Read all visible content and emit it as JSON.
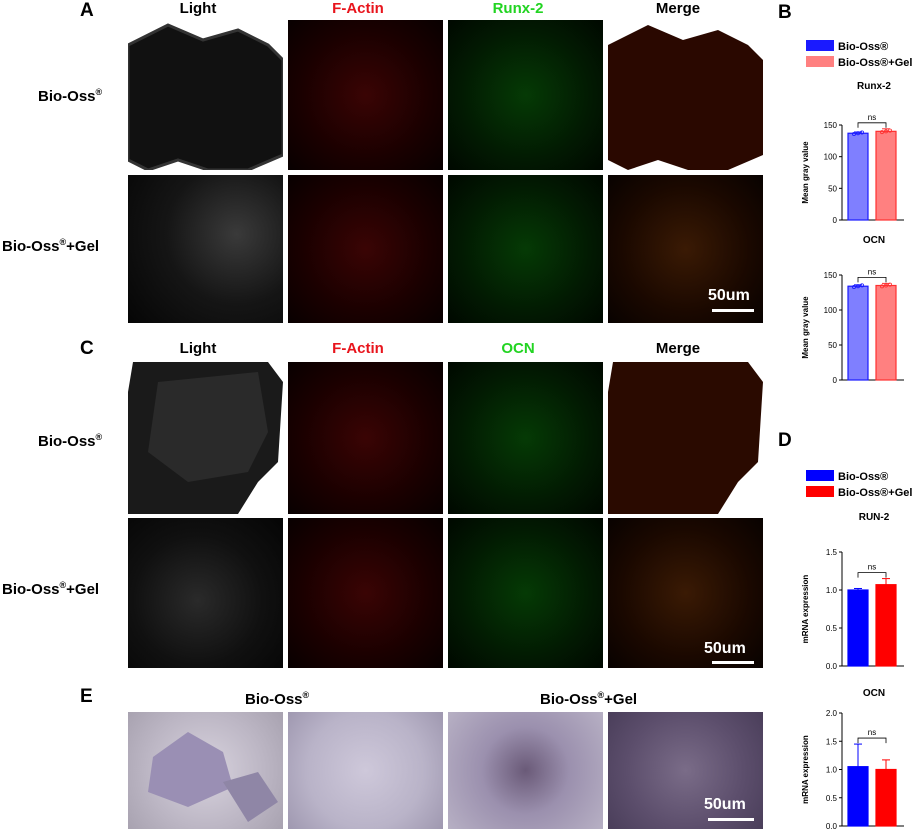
{
  "panels": {
    "A": "A",
    "B": "B",
    "C": "C",
    "D": "D",
    "E": "E"
  },
  "panel_a": {
    "col_headers": [
      {
        "text": "Light",
        "color": "#000000"
      },
      {
        "text": "F-Actin",
        "color": "#e8141c"
      },
      {
        "text": "Runx-2",
        "color": "#22d422"
      },
      {
        "text": "Merge",
        "color": "#000000"
      }
    ],
    "row_labels": [
      {
        "main": "Bio-Oss",
        "sup": "®",
        "suffix": ""
      },
      {
        "main": "Bio-Oss",
        "sup": "®",
        "suffix": "+Gel"
      }
    ],
    "scale_bar": "50um"
  },
  "panel_c": {
    "col_headers": [
      {
        "text": "Light",
        "color": "#000000"
      },
      {
        "text": "F-Actin",
        "color": "#e8141c"
      },
      {
        "text": "OCN",
        "color": "#22d422"
      },
      {
        "text": "Merge",
        "color": "#000000"
      }
    ],
    "row_labels": [
      {
        "main": "Bio-Oss",
        "sup": "®",
        "suffix": ""
      },
      {
        "main": "Bio-Oss",
        "sup": "®",
        "suffix": "+Gel"
      }
    ],
    "scale_bar": "50um"
  },
  "panel_e": {
    "headers": [
      {
        "main": "Bio-Oss",
        "sup": "®",
        "suffix": ""
      },
      {
        "main": "Bio-Oss",
        "sup": "®",
        "suffix": "+Gel"
      }
    ],
    "scale_bar": "50um"
  },
  "colors": {
    "blue_light": "#7f7fff",
    "red_light": "#ff8080",
    "blue": "#0000ff",
    "red": "#ff0000"
  },
  "chart_data": [
    {
      "type": "bar",
      "panel": "B",
      "title": "Runx-2",
      "ylabel": "Mean gray value",
      "legend": [
        "Bio-Oss®",
        "Bio-Oss®+Gel"
      ],
      "categories": [
        "Bio-Oss®",
        "Bio-Oss®+Gel"
      ],
      "values": [
        137,
        140
      ],
      "errors": [
        2,
        4
      ],
      "ylim": [
        0,
        150
      ],
      "yticks": [
        "0",
        "50",
        "100",
        "150"
      ],
      "significance": "ns",
      "style": "light"
    },
    {
      "type": "bar",
      "panel": "B",
      "title": "OCN",
      "ylabel": "Mean gray value",
      "legend": [
        "Bio-Oss®",
        "Bio-Oss®+Gel"
      ],
      "categories": [
        "Bio-Oss®",
        "Bio-Oss®+Gel"
      ],
      "values": [
        134,
        135
      ],
      "errors": [
        2,
        3
      ],
      "ylim": [
        0,
        150
      ],
      "yticks": [
        "0",
        "50",
        "100",
        "150"
      ],
      "significance": "ns",
      "style": "light"
    },
    {
      "type": "bar",
      "panel": "D",
      "title": "RUN-2",
      "ylabel": "mRNA expression",
      "legend": [
        "Bio-Oss®",
        "Bio-Oss®+Gel"
      ],
      "categories": [
        "Bio-Oss®",
        "Bio-Oss®+Gel"
      ],
      "values": [
        1.0,
        1.07
      ],
      "errors": [
        0.02,
        0.08
      ],
      "ylim": [
        0,
        1.5
      ],
      "yticks": [
        "0.0",
        "0.5",
        "1.0",
        "1.5"
      ],
      "significance": "ns",
      "style": "solid"
    },
    {
      "type": "bar",
      "panel": "D",
      "title": "OCN",
      "ylabel": "mRNA expression",
      "legend": [
        "Bio-Oss®",
        "Bio-Oss®+Gel"
      ],
      "categories": [
        "Bio-Oss®",
        "Bio-Oss®+Gel"
      ],
      "values": [
        1.05,
        1.0
      ],
      "errors": [
        0.4,
        0.17
      ],
      "ylim": [
        0,
        2.0
      ],
      "yticks": [
        "0.0",
        "0.5",
        "1.0",
        "1.5",
        "2.0"
      ],
      "significance": "ns",
      "style": "solid"
    }
  ]
}
